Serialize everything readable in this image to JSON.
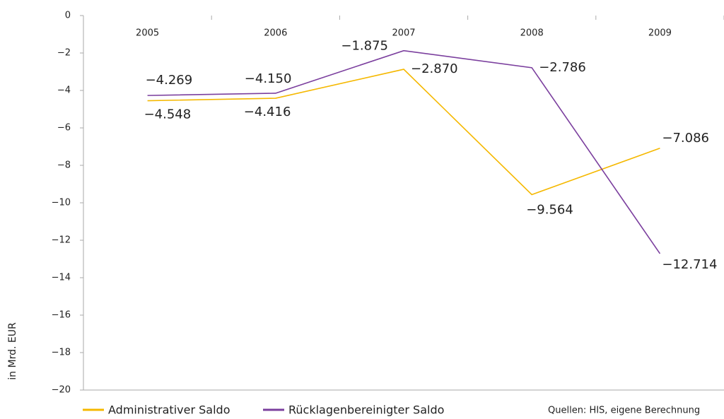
{
  "chart_data": {
    "type": "line",
    "y_label": "in Mrd. EUR",
    "source": "Quellen: HIS, eigene Berechnung",
    "categories": [
      "2005",
      "2006",
      "2007",
      "2008",
      "2009"
    ],
    "series": [
      {
        "name": "Administrativer Saldo",
        "color": "#f5b800",
        "values": [
          -4.548,
          -4.416,
          -2.87,
          -9.564,
          -7.086
        ],
        "value_labels": [
          "−4.548",
          "−4.416",
          "−2.870",
          "−9.564",
          "−7.086"
        ]
      },
      {
        "name": "Rücklagenbereinigter Saldo",
        "color": "#7b3f9e",
        "values": [
          -4.269,
          -4.15,
          -1.875,
          -2.786,
          -12.714
        ],
        "value_labels": [
          "−4.269",
          "−4.150",
          "−1.875",
          "−2.786",
          "−12.714"
        ]
      }
    ],
    "ylim": [
      -20,
      0
    ],
    "yticks": [
      {
        "value": 0,
        "label": "0"
      },
      {
        "value": -2,
        "label": "−2"
      },
      {
        "value": -4,
        "label": "−4"
      },
      {
        "value": -6,
        "label": "−6"
      },
      {
        "value": -8,
        "label": "−8"
      },
      {
        "value": -10,
        "label": "−10"
      },
      {
        "value": -12,
        "label": "−12"
      },
      {
        "value": -14,
        "label": "−14"
      },
      {
        "value": -16,
        "label": "−16"
      },
      {
        "value": -18,
        "label": "−18"
      },
      {
        "value": -20,
        "label": "−20"
      }
    ]
  }
}
